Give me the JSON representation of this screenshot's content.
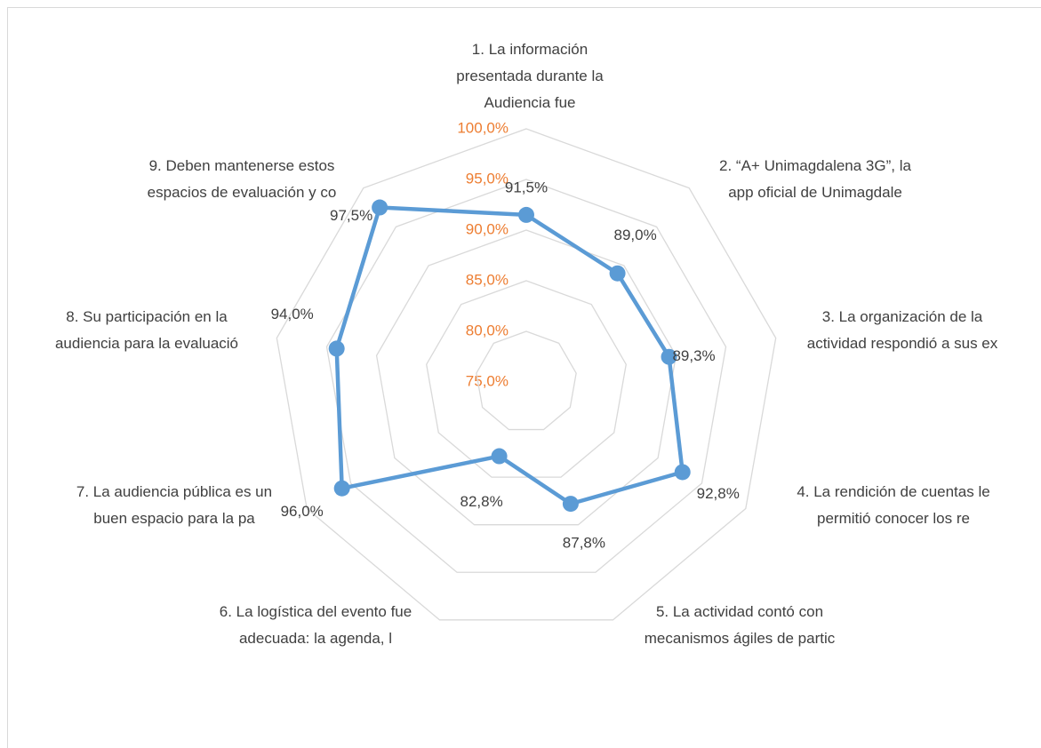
{
  "chart_data": {
    "type": "radar",
    "categories": [
      "1. La información\npresentada durante la\nAudiencia fue",
      "2. “A+ Unimagdalena 3G”, la\napp oficial de Unimagdale",
      "3. La organización de la\nactividad respondió a sus ex",
      "4. La rendición de cuentas le\npermitió conocer los re",
      "5. La actividad contó con\nmecanismos ágiles de partic",
      "6. La logística del evento fue\nadecuada: la agenda, l",
      "7. La audiencia pública es un\nbuen espacio para la pa",
      "8. Su participación en la\naudiencia para la evaluació",
      "9. Deben mantenerse estos\nespacios de evaluación y co"
    ],
    "series": [
      {
        "color": "#5b9bd5",
        "values": [
          91.5,
          89.0,
          89.3,
          92.8,
          87.8,
          82.8,
          96.0,
          94.0,
          97.5
        ],
        "value_labels": [
          "91,5%",
          "89,0%",
          "89,3%",
          "92,8%",
          "87,8%",
          "82,8%",
          "96,0%",
          "94,0%",
          "97,5%"
        ]
      }
    ],
    "ylim": [
      75,
      100
    ],
    "yticks": [
      {
        "value": 75,
        "label": "75,0%"
      },
      {
        "value": 80,
        "label": "80,0%"
      },
      {
        "value": 85,
        "label": "85,0%"
      },
      {
        "value": 90,
        "label": "90,0%"
      },
      {
        "value": 95,
        "label": "95,0%"
      },
      {
        "value": 100,
        "label": "100,0%"
      }
    ],
    "tick_color": "#ed7d31",
    "grid": true
  }
}
